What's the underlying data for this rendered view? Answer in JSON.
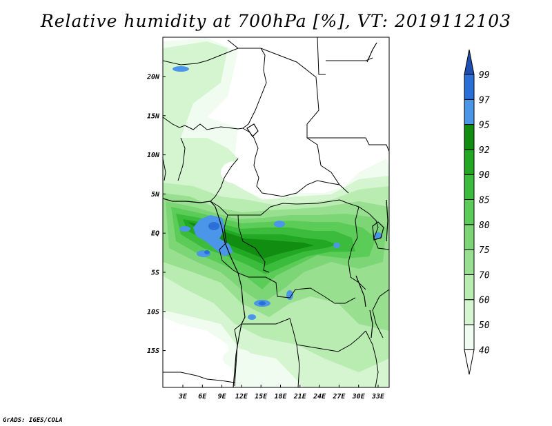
{
  "title": "Relative humidity at 700hPa [%], VT: 2019112103",
  "credit": "GrADS: IGES/COLA",
  "map": {
    "lon_ticks": [
      "3E",
      "6E",
      "9E",
      "12E",
      "15E",
      "18E",
      "21E",
      "24E",
      "27E",
      "30E",
      "33E"
    ],
    "lat_ticks": [
      "20N",
      "15N",
      "10N",
      "5N",
      "EQ",
      "5S",
      "10S",
      "15S"
    ]
  },
  "colorbar": {
    "levels": [
      "40",
      "50",
      "60",
      "70",
      "75",
      "80",
      "85",
      "90",
      "92",
      "95",
      "97",
      "99"
    ],
    "colors": [
      "#f0fcf0",
      "#d4f5d0",
      "#b8ecb0",
      "#98e090",
      "#7cd676",
      "#5ccc58",
      "#3cbc3c",
      "#22a822",
      "#118e11",
      "#4b96e8",
      "#2b6fd8",
      "#1e4fb0"
    ]
  }
}
